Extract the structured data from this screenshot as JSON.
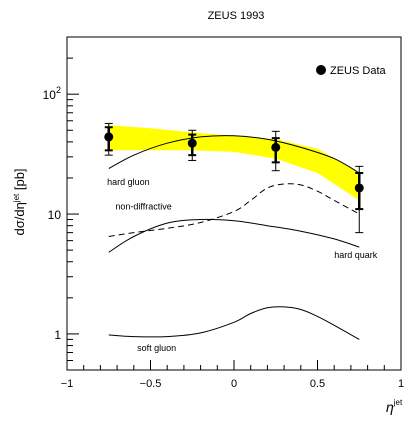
{
  "chart_data": {
    "type": "line",
    "title": "ZEUS 1993",
    "ylabel_main": "dσ/dη",
    "ylabel_sup": "jet",
    "ylabel_unit": " [pb]",
    "xlabel_main": "η",
    "xlabel_sup": "jet",
    "xlim": [
      -1,
      1
    ],
    "ylim": [
      0.5,
      300
    ],
    "yscale": "log",
    "x_ticks": [
      -1,
      -0.5,
      0,
      0.5,
      1
    ],
    "x_tick_labels": [
      "−1",
      "−0.5",
      "0",
      "0.5",
      "1"
    ],
    "y_ticks": [
      {
        "value": 1,
        "base": "1",
        "exp": ""
      },
      {
        "value": 10,
        "base": "10",
        "exp": ""
      },
      {
        "value": 100,
        "base": "10",
        "exp": "2"
      }
    ],
    "legend": {
      "label": "ZEUS Data",
      "placement": "top-right"
    },
    "data_points": {
      "name": "ZEUS Data",
      "x": [
        -0.75,
        -0.25,
        0.25,
        0.75
      ],
      "y": [
        44,
        39,
        36,
        16.5
      ],
      "err_stat_up": [
        53,
        46,
        43,
        22
      ],
      "err_stat_down": [
        34,
        31,
        27,
        11
      ],
      "err_total_up": [
        57,
        50,
        49,
        25
      ],
      "err_total_down": [
        31,
        28,
        23,
        7
      ]
    },
    "band": {
      "color": "#ffff00",
      "x": [
        -0.75,
        -0.5,
        -0.25,
        0.0,
        0.25,
        0.5,
        0.75
      ],
      "upper": [
        55,
        52,
        48,
        45,
        42,
        35,
        22
      ],
      "lower": [
        34,
        34,
        34,
        33,
        29,
        22,
        13
      ]
    },
    "series": [
      {
        "label": "hard gluon",
        "style": "solid",
        "x": [
          -0.75,
          -0.6,
          -0.4,
          -0.2,
          0.0,
          0.2,
          0.4,
          0.6,
          0.75
        ],
        "y": [
          24,
          31,
          39,
          44,
          45,
          42,
          36,
          29,
          22
        ]
      },
      {
        "label": "non-diffractive",
        "style": "dashed",
        "x": [
          -0.75,
          -0.6,
          -0.4,
          -0.2,
          0.0,
          0.1,
          0.2,
          0.3,
          0.4,
          0.5,
          0.6,
          0.75
        ],
        "y": [
          6.5,
          7.0,
          7.6,
          8.5,
          10.5,
          13,
          16.5,
          17.8,
          17.5,
          15.5,
          13,
          10
        ]
      },
      {
        "label": "hard quark",
        "style": "solid",
        "x": [
          -0.75,
          -0.6,
          -0.4,
          -0.2,
          0.0,
          0.2,
          0.4,
          0.6,
          0.75
        ],
        "y": [
          4.8,
          6.5,
          8.4,
          9.0,
          8.8,
          8.0,
          7.2,
          6.2,
          5.3
        ]
      },
      {
        "label": "soft gluon",
        "style": "solid",
        "x": [
          -0.75,
          -0.6,
          -0.4,
          -0.2,
          0.0,
          0.1,
          0.2,
          0.3,
          0.4,
          0.5,
          0.6,
          0.75
        ],
        "y": [
          0.98,
          0.95,
          0.95,
          1.02,
          1.25,
          1.48,
          1.65,
          1.68,
          1.6,
          1.4,
          1.18,
          0.9
        ]
      }
    ],
    "series_label_positions": [
      {
        "label": "hard gluon",
        "x": -0.76,
        "y": 17.5
      },
      {
        "label": "non-diffractive",
        "x": -0.71,
        "y": 10.9
      },
      {
        "label": "hard quark",
        "x": 0.6,
        "y": 4.3
      },
      {
        "label": "soft gluon",
        "x": -0.58,
        "y": 0.72
      }
    ]
  }
}
